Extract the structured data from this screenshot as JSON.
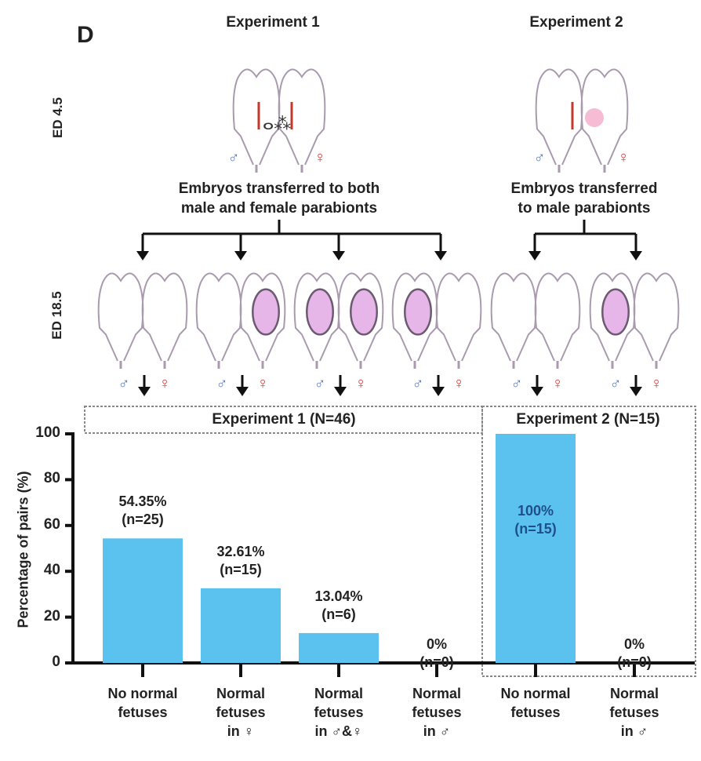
{
  "figure": {
    "panel_label": "D",
    "experiments": [
      {
        "title": "Experiment 1",
        "caption_line1": "Embryos transferred to both",
        "caption_line2": "male and female parabionts"
      },
      {
        "title": "Experiment 2",
        "caption_line1": "Embryos transferred",
        "caption_line2": "to male parabionts"
      }
    ],
    "stage_labels": {
      "early": "ED 4.5",
      "late": "ED 18.5"
    },
    "symbols": {
      "male": "♂",
      "female": "♀"
    },
    "colors": {
      "bar": "#5bc2f0",
      "value_exp2": "#1f4f8a",
      "male": "#5a7fc0",
      "female": "#d03a3a"
    }
  },
  "chart_data": {
    "type": "bar",
    "ylabel": "Percentage of pairs (%)",
    "ylim": [
      0,
      100
    ],
    "yticks": [
      "0",
      "20",
      "40",
      "60",
      "80",
      "100"
    ],
    "groups": [
      {
        "title": "Experiment 1 (N=46)",
        "indices": [
          0,
          1,
          2,
          3
        ]
      },
      {
        "title": "Experiment 2 (N=15)",
        "indices": [
          4,
          5
        ]
      }
    ],
    "categories": [
      {
        "line1": "No normal",
        "line2": "fetuses",
        "line3": ""
      },
      {
        "line1": "Normal",
        "line2": "fetuses",
        "line3": "in ♀"
      },
      {
        "line1": "Normal",
        "line2": "fetuses",
        "line3": "in ♂&♀"
      },
      {
        "line1": "Normal",
        "line2": "fetuses",
        "line3": "in ♂"
      },
      {
        "line1": "No normal",
        "line2": "fetuses",
        "line3": ""
      },
      {
        "line1": "Normal",
        "line2": "fetuses",
        "line3": "in ♂"
      }
    ],
    "values": [
      54.35,
      32.61,
      13.04,
      0,
      100,
      0
    ],
    "value_labels": [
      "54.35%",
      "32.61%",
      "13.04%",
      "0%",
      "100%",
      "0%"
    ],
    "n_labels": [
      "(n=25)",
      "(n=15)",
      "(n=6)",
      "(n=0)",
      "(n=15)",
      "(n=0)"
    ],
    "pregnancy_states": [
      [
        0,
        0
      ],
      [
        0,
        1
      ],
      [
        1,
        1
      ],
      [
        1,
        0
      ],
      [
        0,
        0
      ],
      [
        1,
        0
      ]
    ]
  }
}
